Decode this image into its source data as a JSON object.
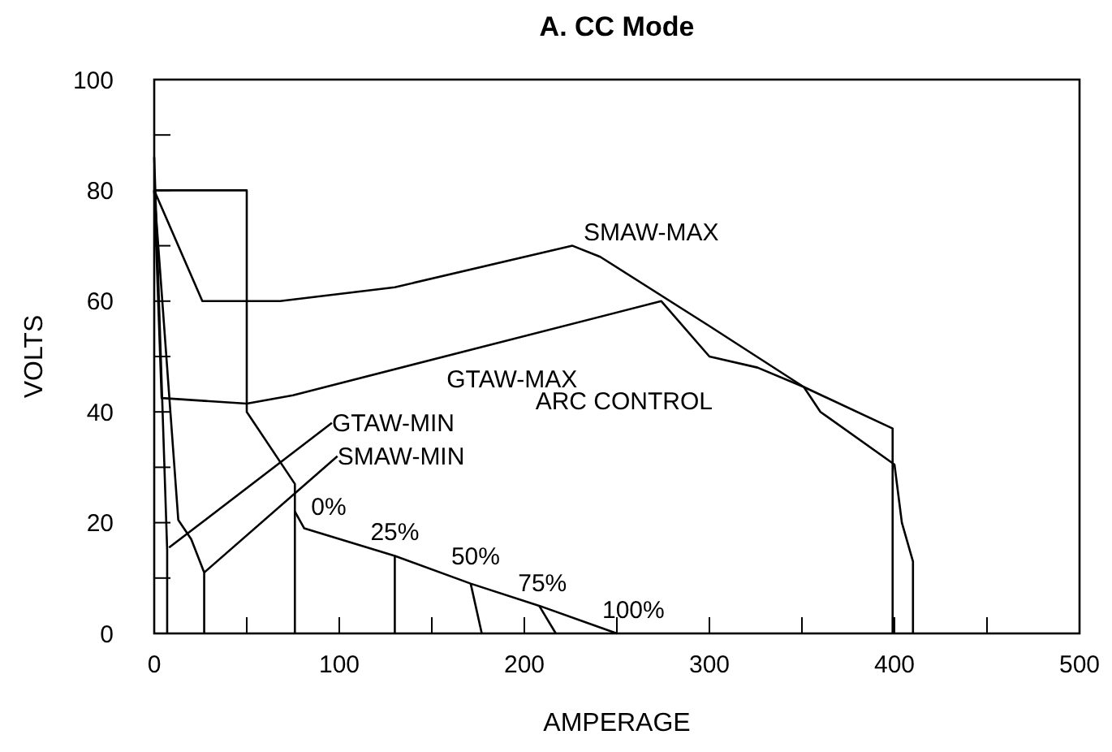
{
  "chart_data": {
    "type": "line",
    "title": "A.  CC Mode",
    "xlabel": "AMPERAGE",
    "ylabel": "VOLTS",
    "xlim": [
      0,
      500
    ],
    "ylim": [
      0,
      100
    ],
    "xticks": [
      0,
      {
        "value": 50,
        "label": null
      },
      100,
      {
        "value": 150,
        "label": null
      },
      200,
      {
        "value": 250,
        "label": null
      },
      300,
      {
        "value": 350,
        "label": null
      },
      400,
      {
        "value": 450,
        "label": null
      },
      500
    ],
    "yticks": [
      0,
      {
        "value": 10,
        "label": null
      },
      20,
      {
        "value": 30,
        "label": null
      },
      40,
      {
        "value": 50,
        "label": null
      },
      60,
      {
        "value": 70,
        "label": null
      },
      80,
      {
        "value": 90,
        "label": null
      },
      100
    ],
    "grid": false,
    "marker": "none",
    "line_style": "solid",
    "series": [
      {
        "color": "#000000",
        "x": [
          0,
          26,
          68,
          130,
          226,
          241,
          300,
          351,
          360,
          400,
          404,
          410,
          410
        ],
        "values": [
          80,
          60,
          60,
          62.5,
          70,
          68,
          55.5,
          44.5,
          40,
          30.5,
          20,
          13,
          0
        ]
      },
      {
        "color": "#000000",
        "x": [
          0,
          4,
          50,
          75,
          274,
          300,
          326,
          351,
          399,
          399
        ],
        "values": [
          80,
          42.5,
          41.5,
          43,
          60,
          50,
          48,
          44.5,
          37,
          0
        ]
      },
      {
        "color": "#000000",
        "x": [
          0,
          50,
          50,
          76,
          76
        ],
        "values": [
          80,
          80,
          40,
          27,
          0
        ]
      },
      {
        "color": "#000000",
        "x": [
          0,
          7,
          7
        ],
        "values": [
          86,
          15,
          0
        ]
      },
      {
        "color": "#000000",
        "x": [
          0,
          13,
          20,
          27,
          27
        ],
        "values": [
          80,
          20.5,
          17,
          11,
          0
        ]
      },
      {
        "color": "#000000",
        "x": [
          8,
          96
        ],
        "values": [
          15.5,
          38
        ]
      },
      {
        "color": "#000000",
        "x": [
          27,
          99
        ],
        "values": [
          11,
          32
        ]
      },
      {
        "color": "#000000",
        "x": [
          76,
          81,
          130,
          171,
          208,
          250
        ],
        "values": [
          22,
          19,
          14,
          9,
          5,
          0
        ]
      },
      {
        "color": "#000000",
        "x": [
          130,
          130
        ],
        "values": [
          14,
          0
        ]
      },
      {
        "color": "#000000",
        "x": [
          171,
          177
        ],
        "values": [
          9,
          0
        ]
      },
      {
        "color": "#000000",
        "x": [
          208,
          217
        ],
        "values": [
          5,
          0
        ]
      }
    ],
    "annotations": [
      "SMAW-MAX",
      "GTAW-MAX",
      "ARC CONTROL",
      {
        "text": "GTAW-MIN",
        "x": 96,
        "y": 38
      },
      {
        "text": "SMAW-MIN",
        "x": 99,
        "y": 32
      },
      {
        "text": "0%",
        "x": 76,
        "y": 22
      },
      {
        "text": "25%",
        "x": 130,
        "y": 14
      },
      {
        "text": "50%",
        "x": 171,
        "y": 9
      },
      {
        "text": "75%",
        "x": 208,
        "y": 5
      },
      {
        "text": "100%",
        "x": 250,
        "y": 0
      }
    ]
  }
}
